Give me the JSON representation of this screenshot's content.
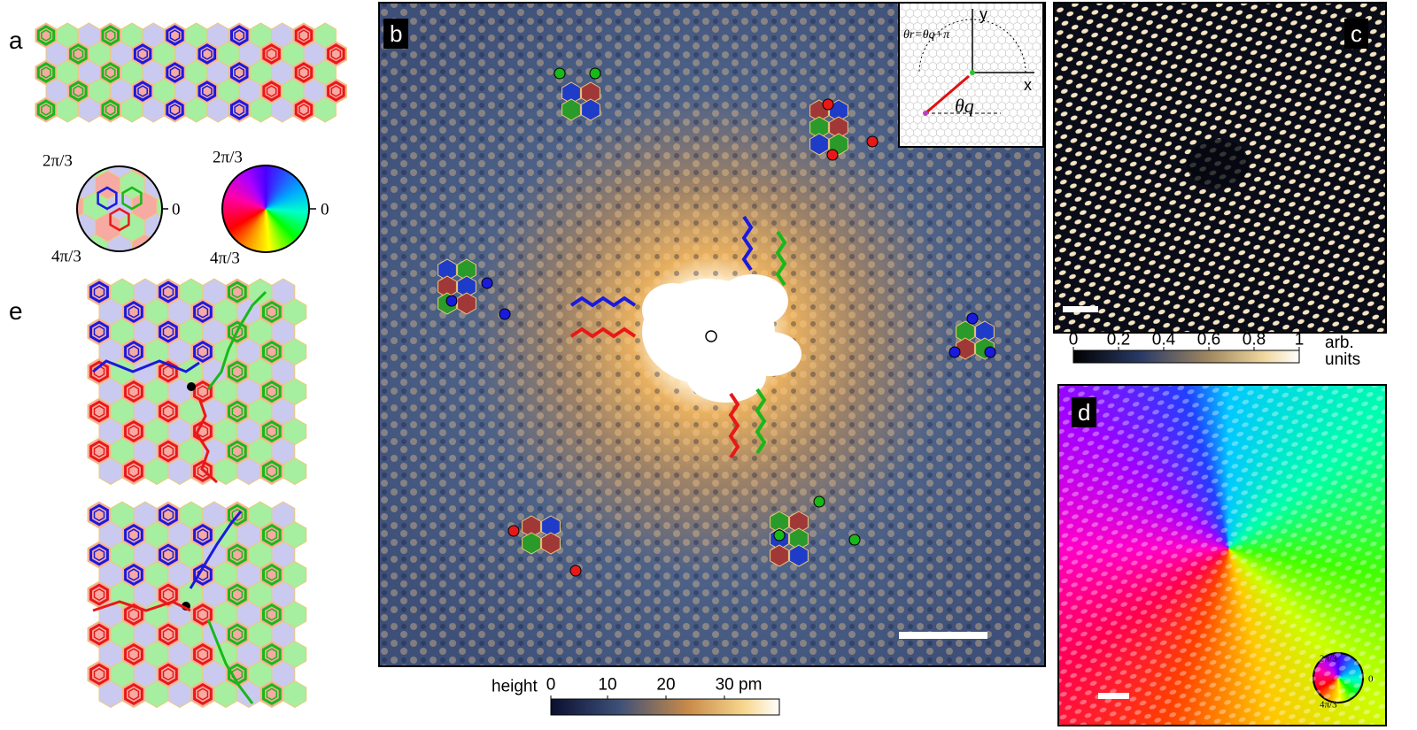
{
  "panel_a": {
    "label": "a",
    "hex_wheel": {
      "top": "2π/3",
      "right": 0,
      "bottom": "4π/3"
    },
    "color_wheel": {
      "top": "2π/3",
      "right": 0,
      "bottom": "4π/3"
    }
  },
  "panel_b": {
    "label": "b",
    "inset": {
      "relation": "θr=θq+π",
      "y_axis": "y",
      "x_axis": "x",
      "angle": "θq"
    },
    "colorbar": {
      "title": "height",
      "ticks": [
        0,
        10,
        20,
        "30 pm"
      ]
    }
  },
  "panel_c": {
    "label": "c",
    "colorbar": {
      "ticks": [
        0,
        0.2,
        0.4,
        0.6,
        0.8,
        1
      ],
      "unit": "arb. units"
    }
  },
  "panel_d": {
    "label": "d",
    "wheel": {
      "top": "2π/3",
      "right": 0,
      "bottom": "4π/3"
    }
  },
  "panel_e": {
    "label": "e"
  }
}
